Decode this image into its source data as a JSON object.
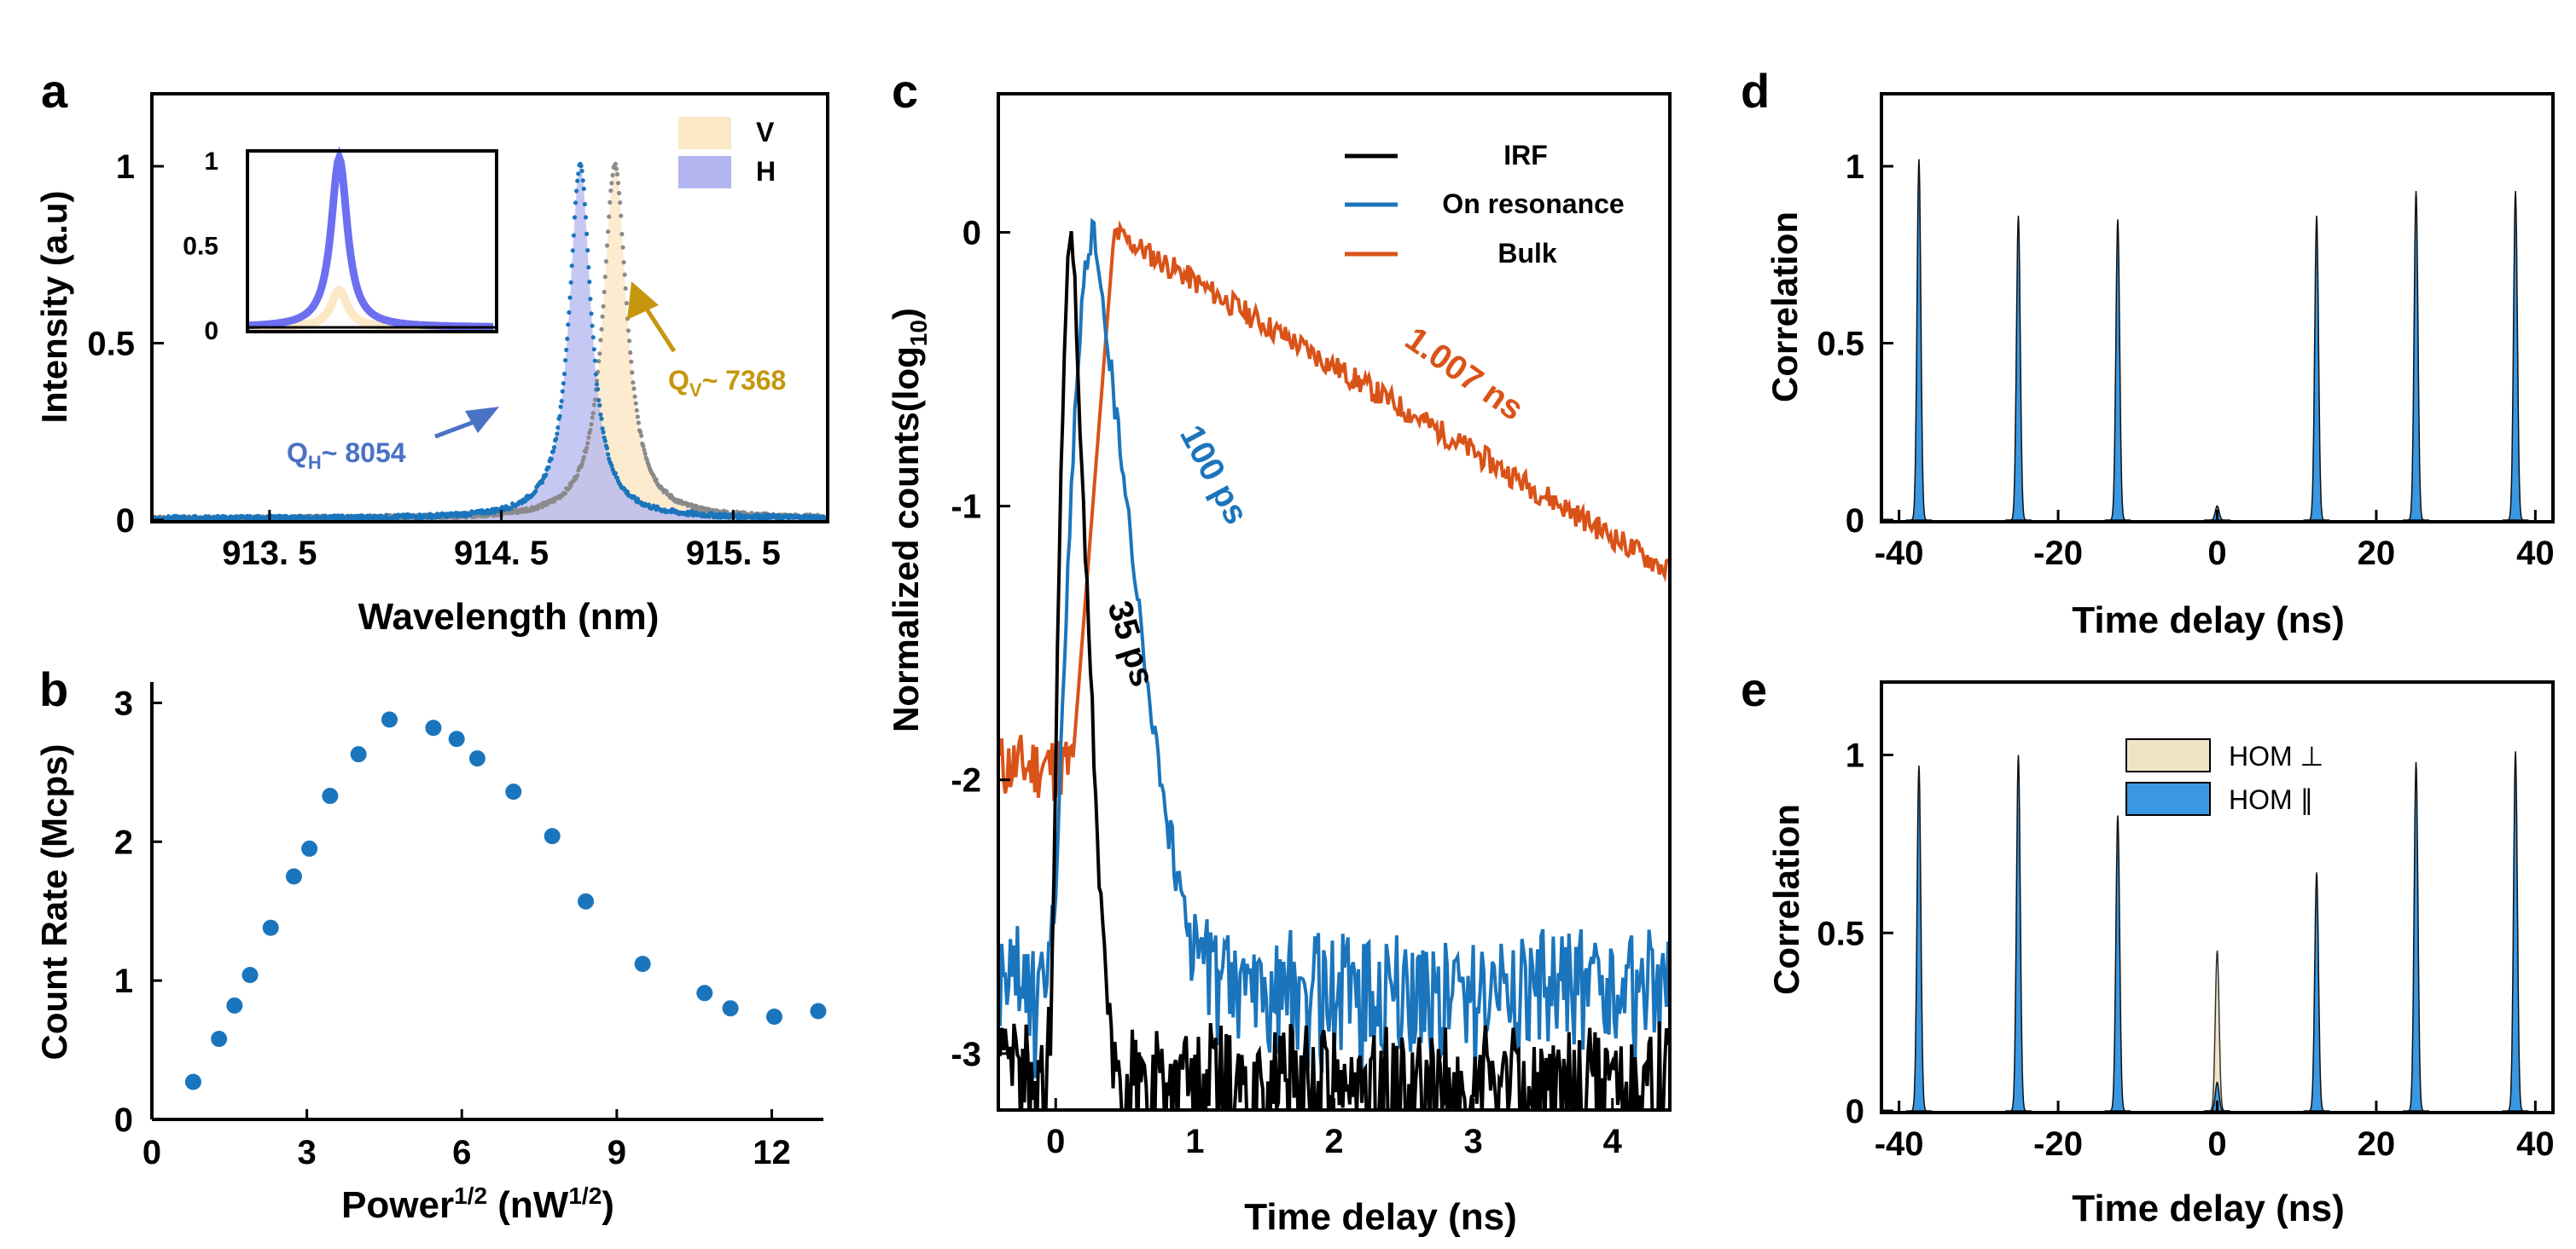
{
  "colors": {
    "blue": "#1b75bc",
    "orange": "#d95319",
    "black": "#000000",
    "v_fill": "#fbe8c6",
    "h_fill": "#b3b5f0",
    "h_line": "#6c6ff0",
    "qv": "#c6960f",
    "qh": "#4a72c4",
    "hom_perp": "#efe4c4",
    "hom_par": "#3a98e2"
  },
  "panels": {
    "a": "a",
    "b": "b",
    "c": "c",
    "d": "d",
    "e": "e"
  },
  "chart_data": [
    {
      "panel": "a",
      "type": "line",
      "xlabel": "Wavelength (nm)",
      "ylabel": "Intensity (a.u)",
      "xlim": [
        913.0,
        915.9
      ],
      "ylim": [
        0,
        1.2
      ],
      "xticks": [
        913.5,
        914.5,
        915.5
      ],
      "xtick_labels": [
        "913. 5",
        "914. 5",
        "915. 5"
      ],
      "yticks": [
        0,
        0.5,
        1
      ],
      "ytick_labels": [
        "0",
        "0.5",
        "1"
      ],
      "legend": [
        {
          "name": "V"
        },
        {
          "name": "H"
        }
      ],
      "legend_position": "top-right",
      "series": [
        {
          "name": "H",
          "center": 914.84,
          "fwhm": 0.114,
          "peak": 1.0
        },
        {
          "name": "V",
          "center": 914.99,
          "fwhm": 0.124,
          "peak": 1.0
        }
      ],
      "annotations": [
        {
          "text": "Q",
          "sub": "H",
          "rest": "~ 8054"
        },
        {
          "text": "Q",
          "sub": "V",
          "rest": "~ 7368"
        }
      ],
      "inset": {
        "yticks": [
          0,
          0.5,
          1
        ],
        "ytick_labels": [
          "0",
          "0.5",
          "1"
        ],
        "ylim": [
          0,
          1.05
        ],
        "H_peak": 1.0,
        "V_peak": 0.22
      }
    },
    {
      "panel": "b",
      "type": "scatter",
      "xlabel_main": "Power",
      "xlabel_sup": "1/2",
      "xlabel_rest": " (nW",
      "xlabel_sup2": "1/2",
      "xlabel_end": ")",
      "ylabel": "Count Rate (Mcps)",
      "xlim": [
        0,
        13
      ],
      "ylim": [
        0,
        3.15
      ],
      "xticks": [
        0,
        3,
        6,
        9,
        12
      ],
      "yticks": [
        0,
        1,
        2,
        3
      ],
      "x": [
        0.8,
        1.3,
        1.6,
        1.9,
        2.3,
        2.75,
        3.05,
        3.45,
        4.0,
        4.6,
        5.45,
        5.9,
        6.3,
        7.0,
        7.75,
        8.4,
        9.5,
        10.7,
        11.2,
        12.05,
        12.9
      ],
      "y": [
        0.27,
        0.58,
        0.82,
        1.04,
        1.38,
        1.75,
        1.95,
        2.33,
        2.63,
        2.88,
        2.82,
        2.74,
        2.6,
        2.36,
        2.04,
        1.57,
        1.12,
        0.91,
        0.8,
        0.74,
        0.78
      ]
    },
    {
      "panel": "c",
      "type": "line",
      "xlabel": "Time delay (ns)",
      "ylabel_main": "Normalized counts(log",
      "ylabel_sub": "10",
      "ylabel_end": ")",
      "xlim": [
        -0.4,
        4.4
      ],
      "ylim": [
        -3.2,
        0.5
      ],
      "xticks": [
        0,
        1,
        2,
        3,
        4
      ],
      "yticks": [
        0,
        -1,
        -2,
        -3
      ],
      "legend_position": "top-right",
      "series": [
        {
          "name": "IRF",
          "color_key": "black",
          "peak_time": 0.12,
          "lifetime_ns": 0.035,
          "floor": -3.1
        },
        {
          "name": "On resonance",
          "color_key": "blue",
          "peak_time": 0.28,
          "lifetime_ns": 0.1,
          "floor": -2.75
        },
        {
          "name": "Bulk",
          "color_key": "orange",
          "peak_time": 0.42,
          "lifetime_ns": 1.007,
          "pre_level": -1.95
        }
      ],
      "annotations": [
        "35 ps",
        "100 ps",
        "1.007 ns"
      ]
    },
    {
      "panel": "d",
      "type": "area",
      "xlabel": "Time delay (ns)",
      "ylabel": "Correlation",
      "xlim": [
        -42,
        42
      ],
      "ylim": [
        0,
        1.2
      ],
      "xticks": [
        -40,
        -20,
        0,
        20,
        40
      ],
      "yticks": [
        0,
        0.5,
        1
      ],
      "peaks": [
        {
          "x": -37.5,
          "height": 1.02
        },
        {
          "x": -25.0,
          "height": 0.86
        },
        {
          "x": -12.5,
          "height": 0.85
        },
        {
          "x": 0.0,
          "height": 0.04
        },
        {
          "x": 12.5,
          "height": 0.86
        },
        {
          "x": 25.0,
          "height": 0.93
        },
        {
          "x": 37.5,
          "height": 0.93
        }
      ]
    },
    {
      "panel": "e",
      "type": "area",
      "xlabel": "Time delay (ns)",
      "ylabel": "Correlation",
      "xlim": [
        -42,
        42
      ],
      "ylim": [
        0,
        1.2
      ],
      "xticks": [
        -40,
        -20,
        0,
        20,
        40
      ],
      "yticks": [
        0,
        0.5,
        1
      ],
      "legend": [
        {
          "name": "HOM ⊥"
        },
        {
          "name": "HOM ∥"
        }
      ],
      "legend_position": "top-right",
      "peaks": [
        {
          "x": -37.5,
          "height": 0.97
        },
        {
          "x": -25.0,
          "height": 1.0
        },
        {
          "x": -12.5,
          "height": 0.83
        },
        {
          "x": 0.0,
          "height": 0.08,
          "perp_height": 0.45
        },
        {
          "x": 12.5,
          "height": 0.67
        },
        {
          "x": 25.0,
          "height": 0.98
        },
        {
          "x": 37.5,
          "height": 1.01
        }
      ]
    }
  ]
}
